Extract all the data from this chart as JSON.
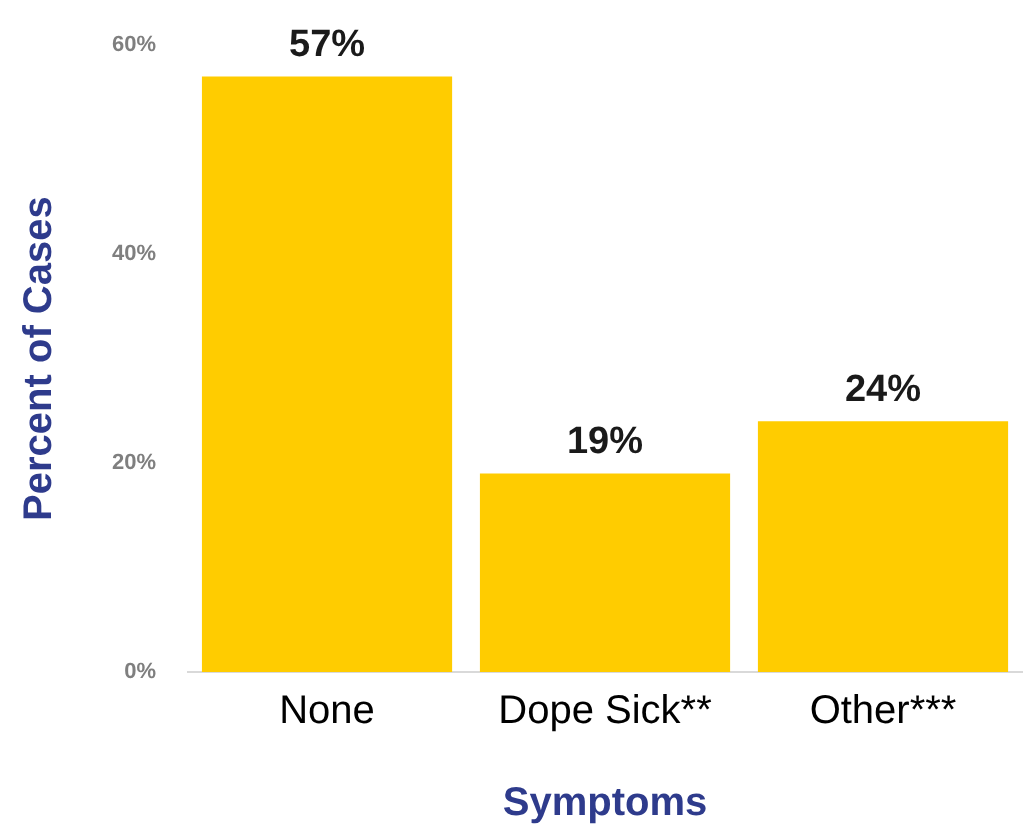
{
  "chart_data": {
    "type": "bar",
    "xlabel": "Symptoms",
    "ylabel": "Percent of Cases",
    "categories": [
      "None",
      "Dope Sick**",
      "Other***"
    ],
    "values": [
      57,
      19,
      24
    ],
    "color": "#ffcc00",
    "value_labels": [
      "57%",
      "19%",
      "24%"
    ],
    "ylim": [
      0,
      60
    ],
    "yticks": [
      {
        "value": 0,
        "label": "0%"
      },
      {
        "value": 20,
        "label": "20%"
      },
      {
        "value": 40,
        "label": "40%"
      },
      {
        "value": 60,
        "label": "60%"
      }
    ],
    "grid": false,
    "legend": false
  }
}
